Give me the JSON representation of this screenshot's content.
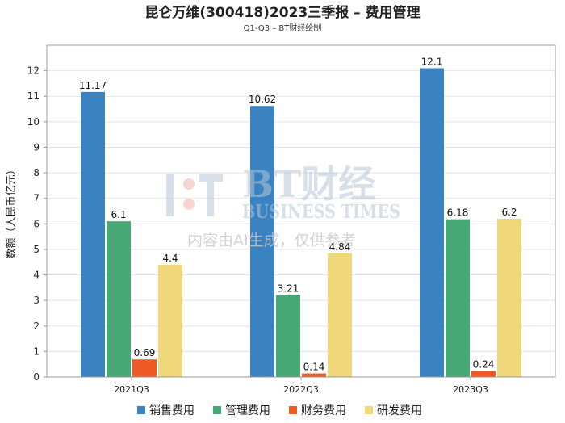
{
  "chart_data": {
    "type": "bar",
    "title": "昆仑万维(300418)2023三季报 – 费用管理",
    "subtitle": "Q1-Q3 – BT财经绘制",
    "ylabel": "数额（人民币亿元）",
    "xlabel": "",
    "ylim": [
      0,
      13
    ],
    "yticks": [
      0,
      1,
      2,
      3,
      4,
      5,
      6,
      7,
      8,
      9,
      10,
      11,
      12
    ],
    "grid": true,
    "legend_position": "bottom",
    "categories": [
      "2021Q3",
      "2022Q3",
      "2023Q3"
    ],
    "series": [
      {
        "name": "销售费用",
        "color": "#3a82c0",
        "values": [
          11.17,
          10.62,
          12.1
        ],
        "labels": [
          "11.17",
          "10.62",
          "12.1"
        ]
      },
      {
        "name": "管理费用",
        "color": "#45a875",
        "values": [
          6.1,
          3.21,
          6.18
        ],
        "labels": [
          "6.1",
          "3.21",
          "6.18"
        ]
      },
      {
        "name": "财务费用",
        "color": "#ee5a24",
        "values": [
          0.69,
          0.14,
          0.24
        ],
        "labels": [
          "0.69",
          "0.14",
          "0.24"
        ]
      },
      {
        "name": "研发费用",
        "color": "#f0d77b",
        "values": [
          4.4,
          4.84,
          6.2
        ],
        "labels": [
          "4.4",
          "4.84",
          "6.2"
        ]
      }
    ]
  },
  "watermark": {
    "brand": "BT财经",
    "brand_en": "BUSINESS TIMES",
    "note": "内容由AI生成，仅供参考"
  }
}
